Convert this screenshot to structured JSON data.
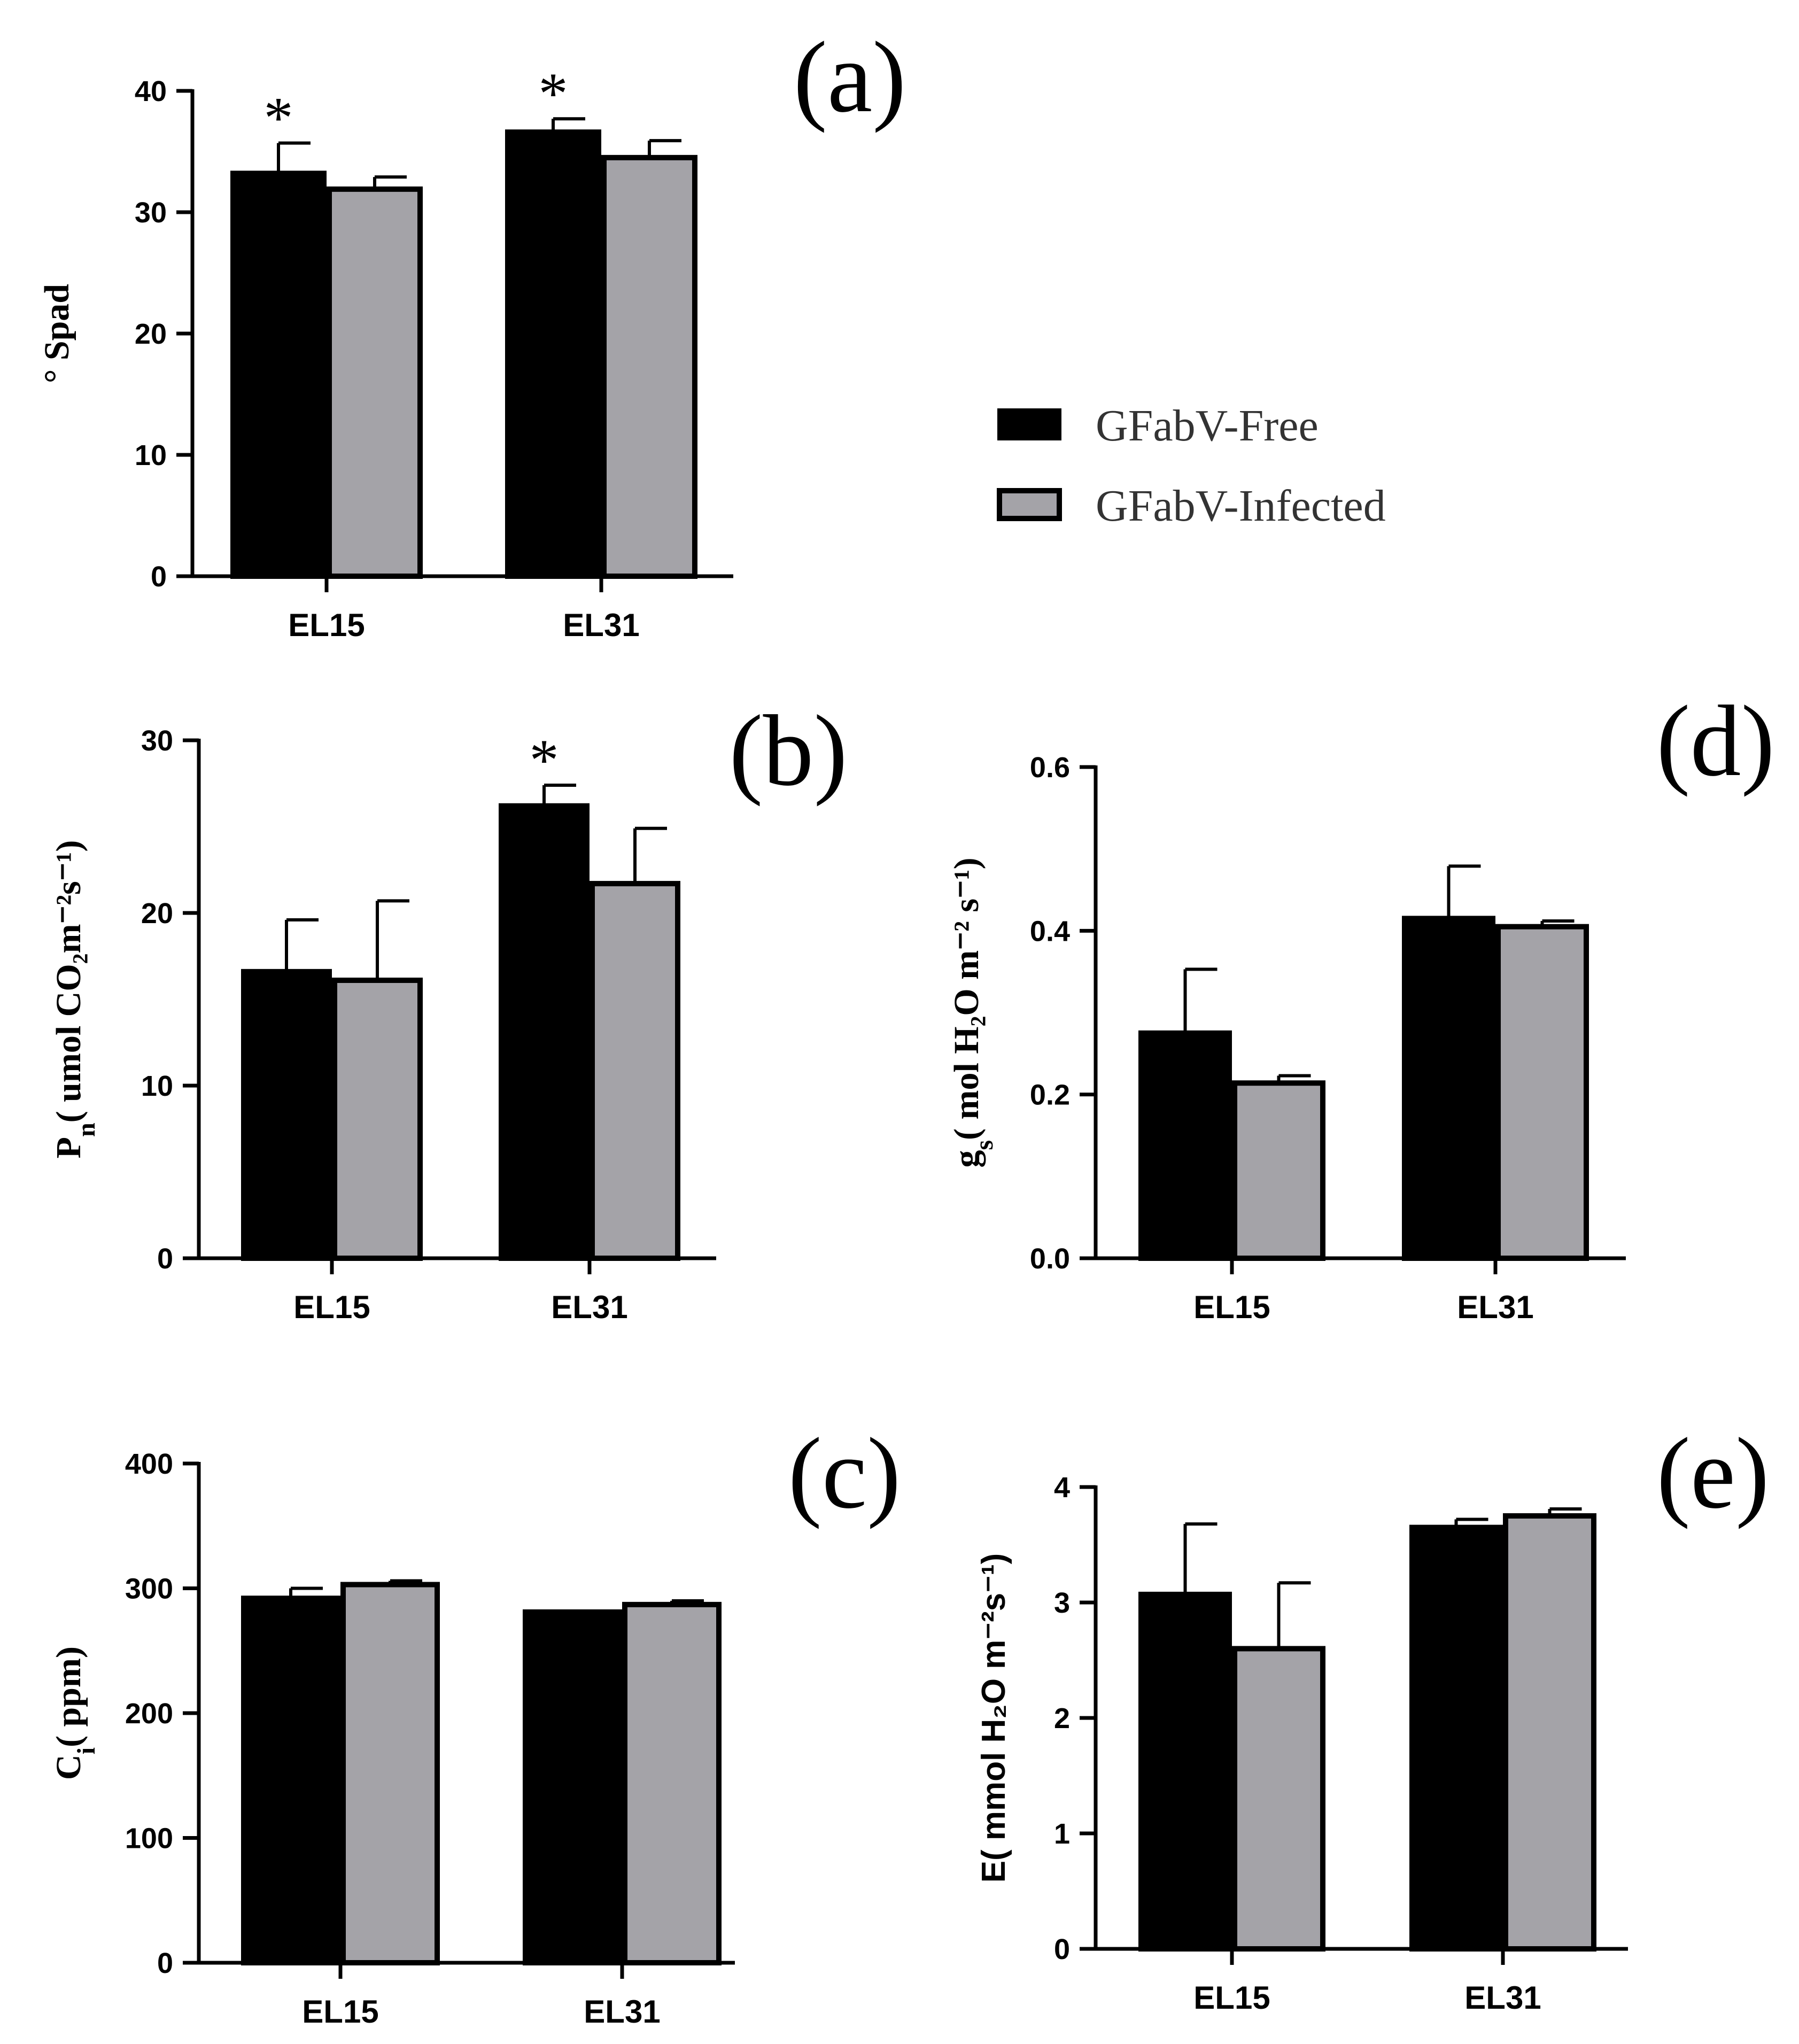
{
  "legend": {
    "items": [
      {
        "label": "GFabV-Free",
        "color": "#000000"
      },
      {
        "label": "GFabV-Infected",
        "color": "#a4a3a8"
      }
    ]
  },
  "chart_data": [
    {
      "id": "a",
      "panel_label": "(a)",
      "type": "bar",
      "title": "",
      "categories": [
        "EL15",
        "EL31"
      ],
      "series": [
        {
          "name": "GFabV-Free",
          "values": [
            33.2,
            36.6
          ],
          "errors": [
            2.5,
            1.1
          ]
        },
        {
          "name": "GFabV-Infected",
          "values": [
            31.9,
            34.5
          ],
          "errors": [
            1.0,
            1.4
          ]
        }
      ],
      "significance": [
        "*",
        "*"
      ],
      "ylabel": {
        "main": "° Spad",
        "sub": "",
        "tail": ""
      },
      "ylim": [
        0,
        40
      ],
      "yticks": [
        0,
        10,
        20,
        30,
        40
      ]
    },
    {
      "id": "b",
      "panel_label": "(b)",
      "type": "bar",
      "title": "",
      "categories": [
        "EL15",
        "EL31"
      ],
      "series": [
        {
          "name": "GFabV-Free",
          "values": [
            16.6,
            26.2
          ],
          "errors": [
            3.0,
            1.2
          ]
        },
        {
          "name": "GFabV-Infected",
          "values": [
            16.1,
            21.7
          ],
          "errors": [
            4.6,
            3.2
          ]
        }
      ],
      "significance": [
        "",
        "*"
      ],
      "ylabel": {
        "main": "P",
        "sub": "n",
        "tail": "( umol CO₂m⁻²s⁻¹)"
      },
      "ylim": [
        0,
        30
      ],
      "yticks": [
        0,
        10,
        20,
        30
      ]
    },
    {
      "id": "c",
      "panel_label": "(c)",
      "type": "bar",
      "title": "",
      "categories": [
        "EL15",
        "EL31"
      ],
      "series": [
        {
          "name": "GFabV-Free",
          "values": [
            292,
            281
          ],
          "errors": [
            8,
            0
          ]
        },
        {
          "name": "GFabV-Infected",
          "values": [
            303,
            287
          ],
          "errors": [
            3,
            3
          ]
        }
      ],
      "significance": [
        "",
        ""
      ],
      "ylabel": {
        "main": "C",
        "sub": "i",
        "tail": "( ppm)"
      },
      "ylim": [
        0,
        400
      ],
      "yticks": [
        0,
        100,
        200,
        300,
        400
      ]
    },
    {
      "id": "d",
      "panel_label": "(d)",
      "type": "bar",
      "title": "",
      "categories": [
        "EL15",
        "EL31"
      ],
      "series": [
        {
          "name": "GFabV-Free",
          "values": [
            0.275,
            0.415
          ],
          "errors": [
            0.078,
            0.064
          ]
        },
        {
          "name": "GFabV-Infected",
          "values": [
            0.214,
            0.405
          ],
          "errors": [
            0.009,
            0.007
          ]
        }
      ],
      "significance": [
        "",
        ""
      ],
      "ylabel": {
        "main": "g",
        "sub": "s",
        "tail": "( mol H₂O m⁻² s⁻¹)"
      },
      "ylim": [
        0,
        0.6
      ],
      "yticks": [
        "0.0",
        "0.2",
        "0.4",
        "0.6"
      ]
    },
    {
      "id": "e",
      "panel_label": "(e)",
      "type": "bar",
      "title": "",
      "categories": [
        "EL15",
        "EL31"
      ],
      "series": [
        {
          "name": "GFabV-Free",
          "values": [
            3.07,
            3.65
          ],
          "errors": [
            0.61,
            0.07
          ]
        },
        {
          "name": "GFabV-Infected",
          "values": [
            2.6,
            3.75
          ],
          "errors": [
            0.57,
            0.06
          ]
        }
      ],
      "significance": [
        "",
        ""
      ],
      "ylabel": {
        "main": "E",
        "sub": "",
        "tail": "( mmol H₂O m⁻²s⁻¹)"
      },
      "ylim": [
        0,
        4
      ],
      "yticks": [
        0,
        1,
        2,
        3,
        4
      ]
    }
  ]
}
